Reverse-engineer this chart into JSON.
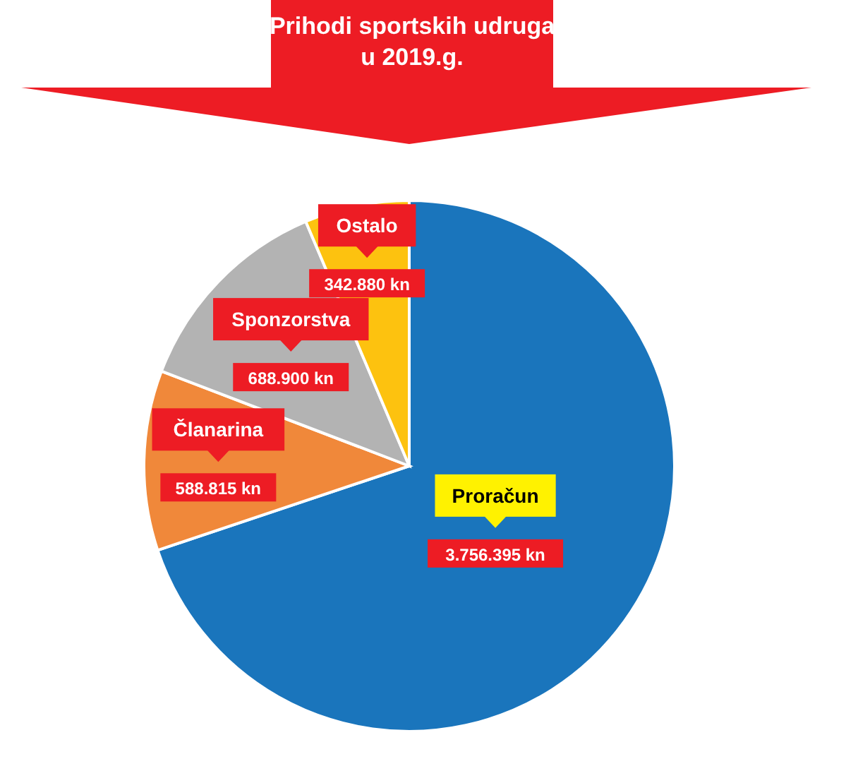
{
  "chart_data": {
    "type": "pie",
    "title": "Prihodi sportskih udruga u 2019.g.",
    "categories": [
      "Proračun",
      "Članarina",
      "Sponzorstva",
      "Ostalo"
    ],
    "values": [
      3756395,
      588815,
      688900,
      342880
    ],
    "colors": [
      "#1a75bc",
      "#f0883a",
      "#b3b3b3",
      "#fdc20f"
    ],
    "value_labels": [
      "3.756.395 kn",
      "588.815 kn",
      "688.900 kn",
      "342.880 kn"
    ],
    "legend": false
  }
}
